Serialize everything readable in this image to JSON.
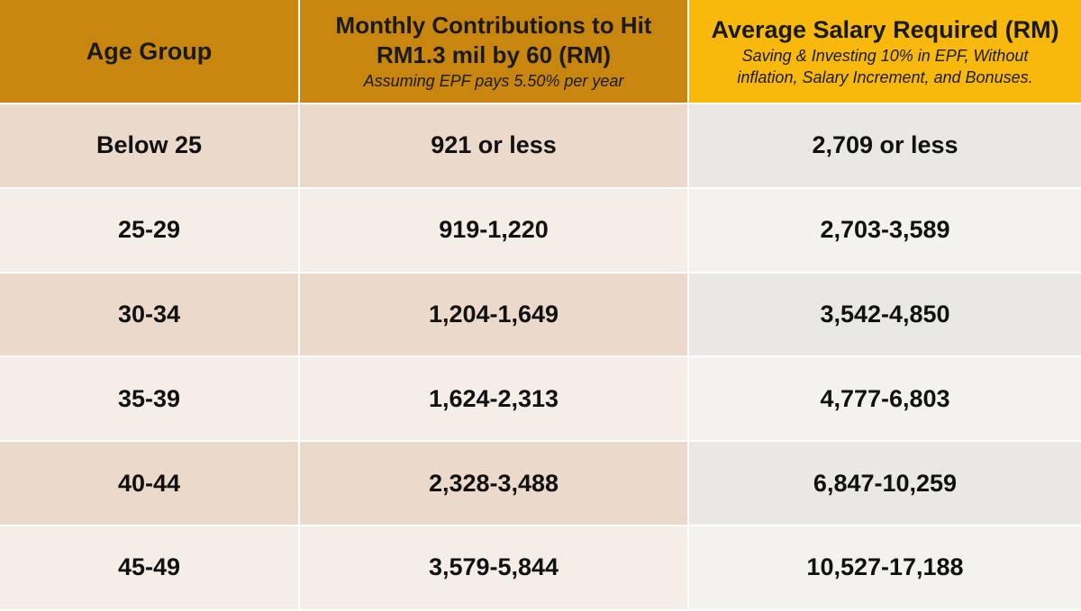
{
  "header": {
    "col1": "Age Group",
    "col2_line1": "Monthly Contributions to Hit",
    "col2_line2": "RM1.3 mil by 60 (RM)",
    "col2_note": "Assuming EPF pays 5.50% per year",
    "col3_title": "Average Salary Required (RM)",
    "col3_note_line1": "Saving & Investing 10% in EPF, Without",
    "col3_note_line2": "inflation, Salary Increment, and Bonuses."
  },
  "rows": [
    {
      "age": "Below 25",
      "contribution": "921 or less",
      "salary": "2,709 or less"
    },
    {
      "age": "25-29",
      "contribution": "919-1,220",
      "salary": "2,703-3,589"
    },
    {
      "age": "30-34",
      "contribution": "1,204-1,649",
      "salary": "3,542-4,850"
    },
    {
      "age": "35-39",
      "contribution": "1,624-2,313",
      "salary": "4,777-6,803"
    },
    {
      "age": "40-44",
      "contribution": "2,328-3,488",
      "salary": "6,847-10,259"
    },
    {
      "age": "45-49",
      "contribution": "3,579-5,844",
      "salary": "10,527-17,188"
    }
  ],
  "colors": {
    "header_dark": "#c8860e",
    "header_bright": "#f9b90c",
    "row_tint_odd": "#ebd9cb",
    "row_tint_even": "#f5ede7",
    "col3_odd": "#e9e8e4",
    "col3_even": "#f3f2ef"
  }
}
